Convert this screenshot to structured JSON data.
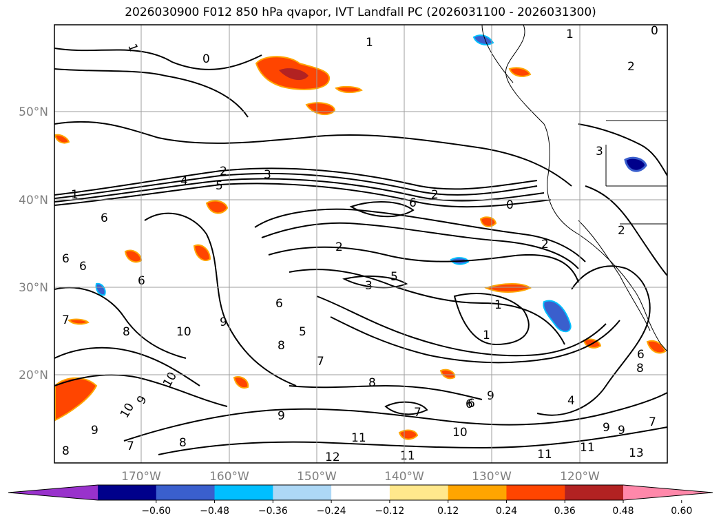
{
  "title": "2026030900 F012 850 hPa qvapor, IVT Landfall PC (2026031100 - 2026031300)",
  "map": {
    "lat_ticks": [
      "50°N",
      "40°N",
      "30°N",
      "20°N"
    ],
    "lon_ticks": [
      "170°W",
      "160°W",
      "150°W",
      "140°W",
      "130°W",
      "120°W"
    ],
    "contour_labels": [
      "1",
      "0",
      "1",
      "2",
      "0",
      "1",
      "2",
      "3",
      "4",
      "5",
      "1",
      "6",
      "2",
      "0",
      "6",
      "6",
      "6",
      "2",
      "3",
      "5",
      "6",
      "1",
      "1",
      "8",
      "10",
      "9",
      "7",
      "6",
      "5",
      "7",
      "8",
      "9",
      "10",
      "9",
      "8",
      "7",
      "6",
      "8",
      "9",
      "11",
      "12",
      "11",
      "10",
      "9",
      "7",
      "6",
      "4",
      "11",
      "13",
      "2",
      "3",
      "2",
      "8",
      "9",
      "7",
      "11",
      "10",
      "9",
      "8",
      "6"
    ]
  },
  "colorbar": {
    "ticks": [
      "−0.60",
      "−0.48",
      "−0.36",
      "−0.24",
      "−0.12",
      "0.12",
      "0.24",
      "0.36",
      "0.48",
      "0.60"
    ],
    "colors": [
      "#9932cc",
      "#00008b",
      "#3a5fcd",
      "#00bfff",
      "#add8f6",
      "#ffffff",
      "#ffe88c",
      "#ffa500",
      "#ff4500",
      "#b22222",
      "#ff88aa"
    ]
  }
}
